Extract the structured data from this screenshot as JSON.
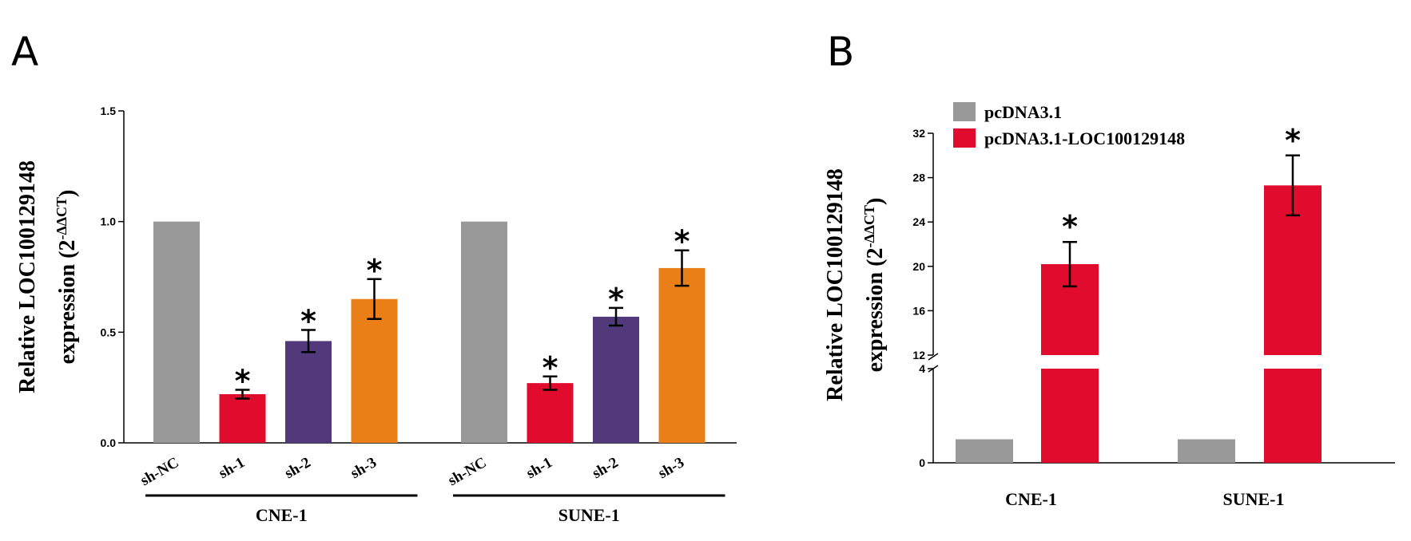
{
  "chart_data": [
    {
      "panel": "A",
      "type": "bar",
      "ylabel": "Relative LOC100129148",
      "ylabel2": "expression (2",
      "ylabel_sup": "-ΔΔCT",
      "ylabel_close": ")",
      "ylim": [
        0,
        1.5
      ],
      "yticks": [
        "0.0",
        "0.5",
        "1.0",
        "1.5"
      ],
      "groups": [
        {
          "name": "CNE-1",
          "categories": [
            "sh-NC",
            "sh-1",
            "sh-2",
            "sh-3"
          ],
          "values": [
            1.0,
            0.22,
            0.46,
            0.65
          ],
          "errors": [
            0,
            0.02,
            0.05,
            0.09
          ],
          "significant": [
            false,
            true,
            true,
            true
          ]
        },
        {
          "name": "SUNE-1",
          "categories": [
            "sh-NC",
            "sh-1",
            "sh-2",
            "sh-3"
          ],
          "values": [
            1.0,
            0.27,
            0.57,
            0.79
          ],
          "errors": [
            0,
            0.03,
            0.04,
            0.08
          ],
          "significant": [
            false,
            true,
            true,
            true
          ]
        }
      ],
      "bar_colors": [
        "#999999",
        "#e10b2d",
        "#51397b",
        "#ea7f17"
      ],
      "significance_marker": "*",
      "grid": false
    },
    {
      "panel": "B",
      "type": "bar",
      "ylabel": "Relative LOC100129148",
      "ylabel2": "expression (2",
      "ylabel_sup": "-ΔΔCT",
      "ylabel_close": ")",
      "broken_axis": {
        "lower": [
          0,
          4
        ],
        "upper": [
          12,
          32
        ]
      },
      "yticks_lower": [
        "0",
        "4"
      ],
      "yticks_upper": [
        "12",
        "16",
        "20",
        "24",
        "28",
        "32"
      ],
      "categories": [
        "CNE-1",
        "SUNE-1"
      ],
      "series": [
        {
          "name": "pcDNA3.1",
          "color": "#999999",
          "values": [
            1.0,
            1.0
          ],
          "errors": [
            0,
            0
          ]
        },
        {
          "name": "pcDNA3.1-LOC100129148",
          "color": "#e10b2d",
          "values": [
            20.2,
            27.3
          ],
          "errors": [
            2.0,
            2.7
          ]
        }
      ],
      "significant": [
        true,
        true
      ],
      "significance_marker": "*",
      "legend_position": "top-left",
      "grid": false
    }
  ]
}
